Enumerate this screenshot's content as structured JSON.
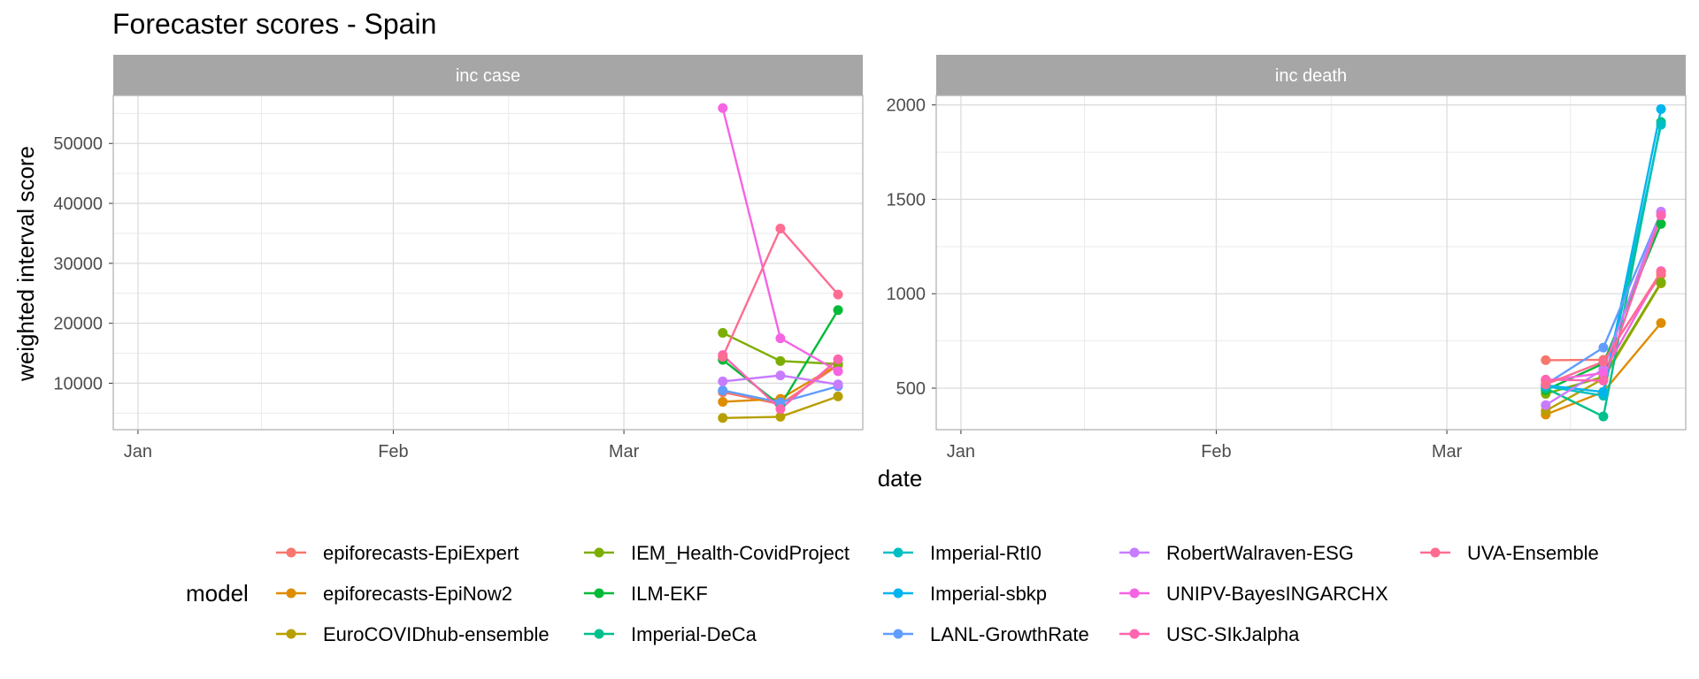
{
  "chart_data": {
    "type": "line",
    "title": "Forecaster scores - Spain",
    "xlabel": "date",
    "ylabel": "weighted interval score",
    "legend_title": "model",
    "legend_position": "bottom",
    "grid": true,
    "x_ticks": [
      "Jan",
      "Feb",
      "Mar"
    ],
    "x_dates": [
      "2021-03-13",
      "2021-03-20",
      "2021-03-27"
    ],
    "models": [
      {
        "name": "epiforecasts-EpiExpert",
        "color": "#F8766D"
      },
      {
        "name": "epiforecasts-EpiNow2",
        "color": "#DE8C00"
      },
      {
        "name": "EuroCOVIDhub-ensemble",
        "color": "#B79F00"
      },
      {
        "name": "IEM_Health-CovidProject",
        "color": "#7CAE00"
      },
      {
        "name": "ILM-EKF",
        "color": "#00BA38"
      },
      {
        "name": "Imperial-DeCa",
        "color": "#00C08B"
      },
      {
        "name": "Imperial-RtI0",
        "color": "#00BFC4"
      },
      {
        "name": "Imperial-sbkp",
        "color": "#00B4F0"
      },
      {
        "name": "LANL-GrowthRate",
        "color": "#619CFF"
      },
      {
        "name": "RobertWalraven-ESG",
        "color": "#C77CFF"
      },
      {
        "name": "UNIPV-BayesINGARCHX",
        "color": "#F564E3"
      },
      {
        "name": "USC-SIkJalpha",
        "color": "#FF64B0"
      },
      {
        "name": "UVA-Ensemble",
        "color": "#FF6C91"
      }
    ],
    "panels": [
      {
        "strip": "inc case",
        "y_ticks": [
          10000,
          20000,
          30000,
          40000,
          50000
        ],
        "series": [
          {
            "model": "epiforecasts-EpiExpert",
            "values": [
              8500,
              6500,
              13000
            ]
          },
          {
            "model": "epiforecasts-EpiNow2",
            "values": [
              6900,
              7400,
              13100
            ]
          },
          {
            "model": "EuroCOVIDhub-ensemble",
            "values": [
              4200,
              4400,
              7800
            ]
          },
          {
            "model": "IEM_Health-CovidProject",
            "values": [
              18400,
              13700,
              13200
            ]
          },
          {
            "model": "ILM-EKF",
            "values": [
              13900,
              6300,
              22200
            ]
          },
          {
            "model": "LANL-GrowthRate",
            "values": [
              8800,
              6800,
              9500
            ]
          },
          {
            "model": "RobertWalraven-ESG",
            "values": [
              10300,
              11300,
              9800
            ]
          },
          {
            "model": "UNIPV-BayesINGARCHX",
            "values": [
              55900,
              17500,
              12000
            ]
          },
          {
            "model": "USC-SIkJalpha",
            "values": [
              14700,
              5700,
              14000
            ]
          },
          {
            "model": "UVA-Ensemble",
            "values": [
              14400,
              35800,
              24800
            ]
          }
        ]
      },
      {
        "strip": "inc death",
        "y_ticks": [
          500,
          1000,
          1500,
          2000
        ],
        "series": [
          {
            "model": "epiforecasts-EpiExpert",
            "values": [
              648,
              650,
              1100
            ]
          },
          {
            "model": "epiforecasts-EpiNow2",
            "values": [
              360,
              480,
              845
            ]
          },
          {
            "model": "EuroCOVIDhub-ensemble",
            "values": [
              380,
              550,
              1055
            ]
          },
          {
            "model": "IEM_Health-CovidProject",
            "values": [
              470,
              560,
              1060
            ]
          },
          {
            "model": "ILM-EKF",
            "values": [
              490,
              630,
              1370
            ]
          },
          {
            "model": "Imperial-DeCa",
            "values": [
              500,
              350,
              1910
            ]
          },
          {
            "model": "Imperial-RtI0",
            "values": [
              510,
              460,
              1895
            ]
          },
          {
            "model": "Imperial-sbkp",
            "values": [
              515,
              480,
              1978
            ]
          },
          {
            "model": "LANL-GrowthRate",
            "values": [
              520,
              715,
              1430
            ]
          },
          {
            "model": "RobertWalraven-ESG",
            "values": [
              410,
              600,
              1435
            ]
          },
          {
            "model": "UNIPV-BayesINGARCHX",
            "values": [
              540,
              580,
              1120
            ]
          },
          {
            "model": "USC-SIkJalpha",
            "values": [
              545,
              540,
              1415
            ]
          },
          {
            "model": "UVA-Ensemble",
            "values": [
              520,
              640,
              1115
            ]
          }
        ]
      }
    ]
  }
}
